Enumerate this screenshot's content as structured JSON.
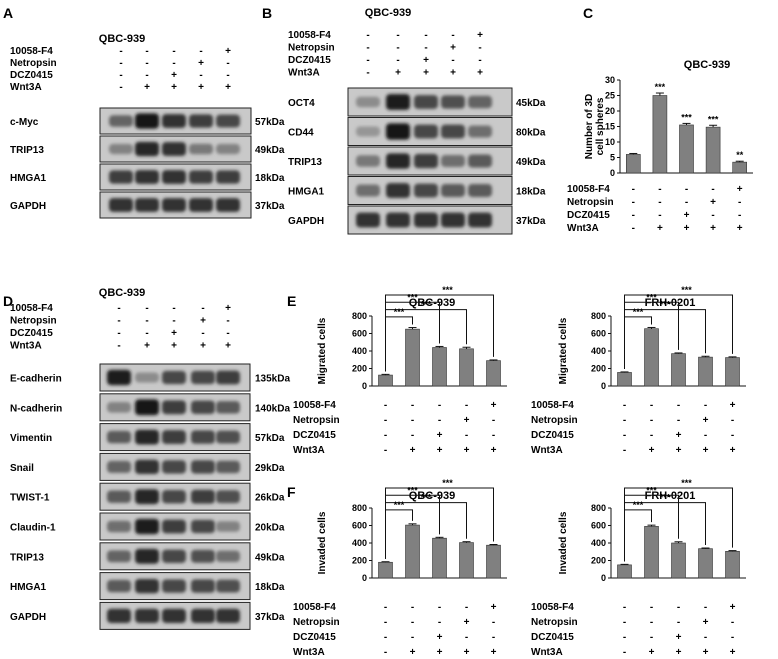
{
  "panels": {
    "A": {
      "letter": "A",
      "title": "QBC-939",
      "treatments": [
        {
          "name": "10058-F4",
          "signs": [
            "-",
            "-",
            "-",
            "-",
            "+"
          ]
        },
        {
          "name": "Netropsin",
          "signs": [
            "-",
            "-",
            "-",
            "+",
            "-"
          ]
        },
        {
          "name": "DCZ0415",
          "signs": [
            "-",
            "-",
            "+",
            "-",
            "-"
          ]
        },
        {
          "name": "Wnt3A",
          "signs": [
            "-",
            "+",
            "+",
            "+",
            "+"
          ]
        }
      ],
      "blots": [
        {
          "name": "c-Myc",
          "size": "57kDa",
          "intensity": [
            0.55,
            0.95,
            0.8,
            0.75,
            0.7
          ]
        },
        {
          "name": "TRIP13",
          "size": "49kDa",
          "intensity": [
            0.4,
            0.85,
            0.8,
            0.45,
            0.4
          ]
        },
        {
          "name": "HMGA1",
          "size": "18kDa",
          "intensity": [
            0.75,
            0.8,
            0.8,
            0.75,
            0.75
          ]
        },
        {
          "name": "GAPDH",
          "size": "37kDa",
          "intensity": [
            0.8,
            0.8,
            0.8,
            0.8,
            0.8
          ]
        }
      ]
    },
    "B": {
      "letter": "B",
      "title": "QBC-939",
      "treatments": [
        {
          "name": "10058-F4",
          "signs": [
            "-",
            "-",
            "-",
            "-",
            "+"
          ]
        },
        {
          "name": "Netropsin",
          "signs": [
            "-",
            "-",
            "-",
            "+",
            "-"
          ]
        },
        {
          "name": "DCZ0415",
          "signs": [
            "-",
            "-",
            "+",
            "-",
            "-"
          ]
        },
        {
          "name": "Wnt3A",
          "signs": [
            "-",
            "+",
            "+",
            "+",
            "+"
          ]
        }
      ],
      "blots": [
        {
          "name": "OCT4",
          "size": "45kDa",
          "intensity": [
            0.35,
            0.9,
            0.7,
            0.65,
            0.55
          ]
        },
        {
          "name": "CD44",
          "size": "80kDa",
          "intensity": [
            0.3,
            0.95,
            0.7,
            0.7,
            0.5
          ]
        },
        {
          "name": "TRIP13",
          "size": "49kDa",
          "intensity": [
            0.45,
            0.85,
            0.75,
            0.5,
            0.6
          ]
        },
        {
          "name": "HMGA1",
          "size": "18kDa",
          "intensity": [
            0.5,
            0.8,
            0.7,
            0.6,
            0.6
          ]
        },
        {
          "name": "GAPDH",
          "size": "37kDa",
          "intensity": [
            0.8,
            0.8,
            0.8,
            0.8,
            0.8
          ]
        }
      ]
    },
    "D": {
      "letter": "D",
      "title": "QBC-939",
      "treatments": [
        {
          "name": "10058-F4",
          "signs": [
            "-",
            "-",
            "-",
            "-",
            "+"
          ]
        },
        {
          "name": "Netropsin",
          "signs": [
            "-",
            "-",
            "-",
            "+",
            "-"
          ]
        },
        {
          "name": "DCZ0415",
          "signs": [
            "-",
            "-",
            "+",
            "-",
            "-"
          ]
        },
        {
          "name": "Wnt3A",
          "signs": [
            "-",
            "+",
            "+",
            "+",
            "+"
          ]
        }
      ],
      "blots": [
        {
          "name": "E-cadherin",
          "size": "135kDa",
          "intensity": [
            0.9,
            0.35,
            0.7,
            0.7,
            0.75
          ]
        },
        {
          "name": "N-cadherin",
          "size": "140kDa",
          "intensity": [
            0.4,
            0.95,
            0.75,
            0.7,
            0.6
          ]
        },
        {
          "name": "Vimentin",
          "size": "57kDa",
          "intensity": [
            0.6,
            0.85,
            0.75,
            0.7,
            0.65
          ]
        },
        {
          "name": "Snail",
          "size": "29kDa",
          "intensity": [
            0.55,
            0.8,
            0.7,
            0.7,
            0.6
          ]
        },
        {
          "name": "TWIST-1",
          "size": "26kDa",
          "intensity": [
            0.6,
            0.85,
            0.7,
            0.75,
            0.65
          ]
        },
        {
          "name": "Claudin-1",
          "size": "20kDa",
          "intensity": [
            0.5,
            0.9,
            0.75,
            0.7,
            0.4
          ]
        },
        {
          "name": "TRIP13",
          "size": "49kDa",
          "intensity": [
            0.55,
            0.85,
            0.7,
            0.65,
            0.5
          ]
        },
        {
          "name": "HMGA1",
          "size": "18kDa",
          "intensity": [
            0.6,
            0.8,
            0.7,
            0.7,
            0.65
          ]
        },
        {
          "name": "GAPDH",
          "size": "37kDa",
          "intensity": [
            0.8,
            0.8,
            0.8,
            0.8,
            0.8
          ]
        }
      ]
    }
  },
  "chart_data": [
    {
      "panel": "C",
      "type": "bar",
      "title": "QBC-939",
      "ylabel": "Number of 3D cell spheres",
      "ylim": [
        0,
        30
      ],
      "yticks": [
        0,
        5,
        10,
        15,
        20,
        25,
        30
      ],
      "values": [
        6,
        25,
        15.5,
        14.8,
        3.5
      ],
      "errors": [
        0.3,
        0.8,
        0.5,
        0.6,
        0.3
      ],
      "sig": [
        "",
        "***",
        "***",
        "***",
        "**"
      ],
      "brackets": []
    },
    {
      "panel": "E",
      "type": "bar",
      "title": "QBC-939",
      "ylabel": "Migrated cells",
      "ylim": [
        0,
        800
      ],
      "yticks": [
        0,
        200,
        400,
        600,
        800
      ],
      "values": [
        125,
        650,
        440,
        425,
        290
      ],
      "errors": [
        8,
        18,
        12,
        18,
        8
      ],
      "sig": [],
      "brackets": [
        {
          "to": 4,
          "label": "***"
        },
        {
          "to": 2,
          "label": "***"
        },
        {
          "to": 3,
          "label": "***"
        },
        {
          "to": 1,
          "label": "***"
        }
      ]
    },
    {
      "panel": "E",
      "type": "bar",
      "title": "FRH-0201",
      "ylabel": "Migrated cells",
      "ylim": [
        0,
        800
      ],
      "yticks": [
        0,
        200,
        400,
        600,
        800
      ],
      "values": [
        155,
        655,
        370,
        330,
        325
      ],
      "errors": [
        6,
        14,
        8,
        10,
        8
      ],
      "sig": [],
      "brackets": [
        {
          "to": 4,
          "label": "***"
        },
        {
          "to": 2,
          "label": "***"
        },
        {
          "to": 3,
          "label": "***"
        },
        {
          "to": 1,
          "label": "***"
        }
      ]
    },
    {
      "panel": "F",
      "type": "bar",
      "title": "QBC-939",
      "ylabel": "Invaded cells",
      "ylim": [
        0,
        800
      ],
      "yticks": [
        0,
        200,
        400,
        600,
        800
      ],
      "values": [
        180,
        605,
        455,
        405,
        375
      ],
      "errors": [
        6,
        14,
        10,
        10,
        8
      ],
      "sig": [],
      "brackets": [
        {
          "to": 4,
          "label": "***"
        },
        {
          "to": 2,
          "label": "***"
        },
        {
          "to": 3,
          "label": "***"
        },
        {
          "to": 1,
          "label": "***"
        }
      ]
    },
    {
      "panel": "F",
      "type": "bar",
      "title": "FRH-0201",
      "ylabel": "Invaded cells",
      "ylim": [
        0,
        800
      ],
      "yticks": [
        0,
        200,
        400,
        600,
        800
      ],
      "values": [
        150,
        590,
        400,
        335,
        305
      ],
      "errors": [
        6,
        14,
        14,
        8,
        8
      ],
      "sig": [],
      "brackets": [
        {
          "to": 4,
          "label": "***"
        },
        {
          "to": 2,
          "label": "***"
        },
        {
          "to": 3,
          "label": "***"
        },
        {
          "to": 1,
          "label": "***"
        }
      ]
    }
  ],
  "chart_treatments": [
    {
      "name": "10058-F4",
      "signs": [
        "-",
        "-",
        "-",
        "-",
        "+"
      ]
    },
    {
      "name": "Netropsin",
      "signs": [
        "-",
        "-",
        "-",
        "+",
        "-"
      ]
    },
    {
      "name": "DCZ0415",
      "signs": [
        "-",
        "-",
        "+",
        "-",
        "-"
      ]
    },
    {
      "name": "Wnt3A",
      "signs": [
        "-",
        "+",
        "+",
        "+",
        "+"
      ]
    }
  ],
  "chart_letters": [
    "C",
    "E",
    "F"
  ],
  "bar_color": "#808080"
}
